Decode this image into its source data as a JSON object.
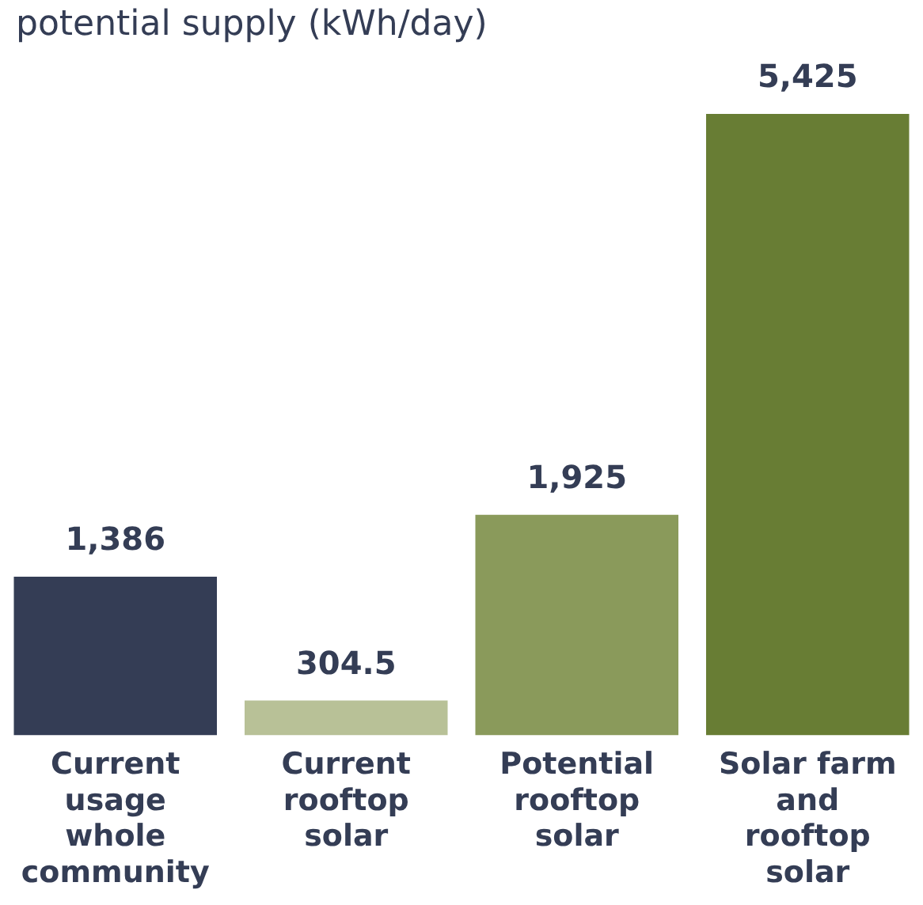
{
  "chart_data": {
    "type": "bar",
    "title": "potential supply (kWh/day)",
    "categories": [
      "Current usage whole community",
      "Current rooftop solar",
      "Potential rooftop solar",
      "Solar farm and rooftop solar"
    ],
    "values": [
      1386,
      304.5,
      1925,
      5425
    ],
    "colors": [
      "#343d55",
      "#b8c197",
      "#8a9a5b",
      "#687d34"
    ],
    "value_labels": [
      "1,386",
      "304.5",
      "1,925",
      "5,425"
    ],
    "ylim": [
      0,
      5425
    ]
  }
}
